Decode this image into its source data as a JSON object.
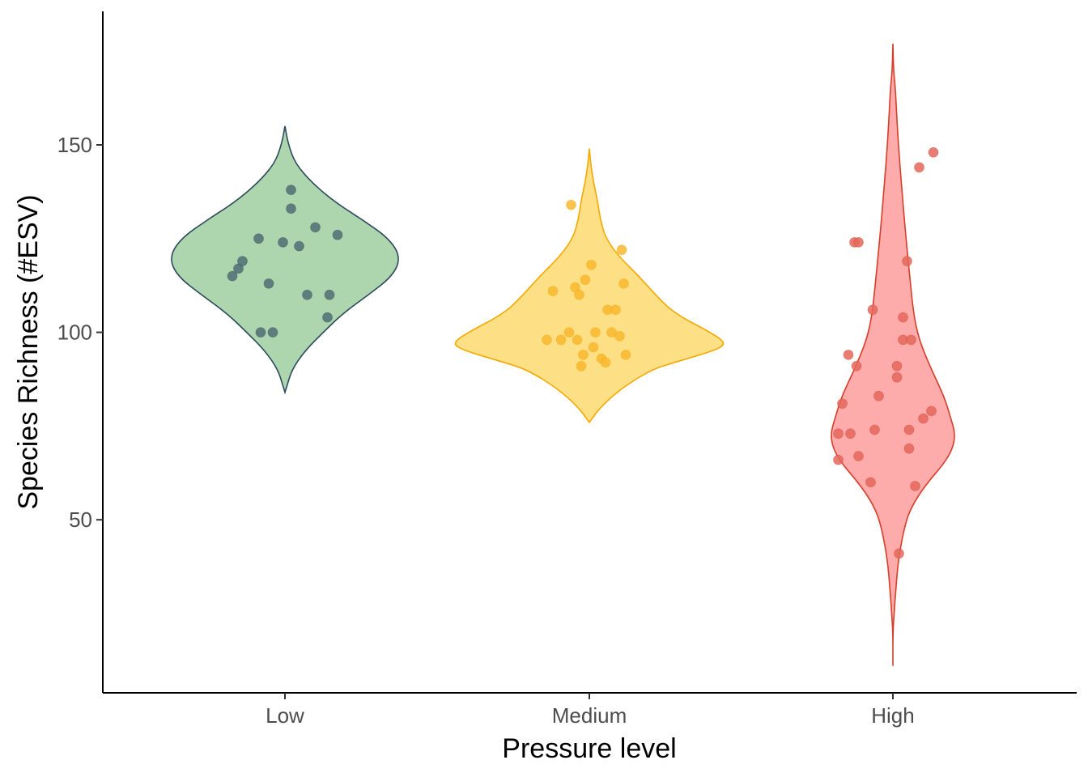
{
  "chart_data": {
    "type": "violin",
    "title": "",
    "xlabel": "Pressure level",
    "ylabel": "Species Richness (#ESV)",
    "categories": [
      "Low",
      "Medium",
      "High"
    ],
    "y_ticks": [
      50,
      100,
      150
    ],
    "ylim": [
      9,
      185
    ],
    "grid": false,
    "legend": "none",
    "series": [
      {
        "category": "Low",
        "fill": "#aed6ae",
        "line": "#2c4a5c",
        "point": "#4f6e73",
        "violin": {
          "range": [
            84,
            155
          ],
          "profile": [
            [
              155,
              0.0
            ],
            [
              150,
              0.03
            ],
            [
              145,
              0.09
            ],
            [
              140,
              0.23
            ],
            [
              135,
              0.42
            ],
            [
              130,
              0.67
            ],
            [
              125,
              0.9
            ],
            [
              120,
              1.0
            ],
            [
              115,
              0.93
            ],
            [
              110,
              0.72
            ],
            [
              105,
              0.5
            ],
            [
              100,
              0.33
            ],
            [
              95,
              0.17
            ],
            [
              90,
              0.06
            ],
            [
              86,
              0.02
            ],
            [
              84,
              0.0
            ]
          ]
        },
        "points": [
          [
            -0.26,
            115
          ],
          [
            -0.23,
            117
          ],
          [
            -0.21,
            119
          ],
          [
            -0.13,
            125
          ],
          [
            -0.12,
            100
          ],
          [
            -0.08,
            113
          ],
          [
            -0.06,
            100
          ],
          [
            -0.01,
            124
          ],
          [
            0.03,
            133
          ],
          [
            0.03,
            138
          ],
          [
            0.07,
            123
          ],
          [
            0.11,
            110
          ],
          [
            0.15,
            128
          ],
          [
            0.21,
            104
          ],
          [
            0.22,
            110
          ],
          [
            0.26,
            126
          ]
        ]
      },
      {
        "category": "Medium",
        "fill": "#fde085",
        "line": "#f5a800",
        "point": "#f9b730",
        "violin": {
          "range": [
            76,
            149
          ],
          "profile": [
            [
              149,
              0.0
            ],
            [
              145,
              0.01
            ],
            [
              140,
              0.03
            ],
            [
              135,
              0.06
            ],
            [
              130,
              0.08
            ],
            [
              125,
              0.12
            ],
            [
              120,
              0.22
            ],
            [
              115,
              0.36
            ],
            [
              110,
              0.48
            ],
            [
              105,
              0.62
            ],
            [
              100,
              0.88
            ],
            [
              97,
              1.0
            ],
            [
              95,
              0.9
            ],
            [
              92,
              0.62
            ],
            [
              90,
              0.45
            ],
            [
              85,
              0.23
            ],
            [
              80,
              0.08
            ],
            [
              76,
              0.0
            ]
          ]
        },
        "points": [
          [
            -0.21,
            98
          ],
          [
            -0.18,
            111
          ],
          [
            -0.14,
            98
          ],
          [
            -0.1,
            100
          ],
          [
            -0.09,
            134
          ],
          [
            -0.07,
            112
          ],
          [
            -0.06,
            98
          ],
          [
            -0.05,
            110
          ],
          [
            -0.04,
            91
          ],
          [
            -0.03,
            94
          ],
          [
            -0.02,
            114
          ],
          [
            0.01,
            118
          ],
          [
            0.02,
            96
          ],
          [
            0.03,
            100
          ],
          [
            0.06,
            93
          ],
          [
            0.08,
            92
          ],
          [
            0.09,
            106
          ],
          [
            0.11,
            100
          ],
          [
            0.13,
            106
          ],
          [
            0.15,
            99
          ],
          [
            0.16,
            122
          ],
          [
            0.17,
            113
          ],
          [
            0.18,
            94
          ]
        ]
      },
      {
        "category": "High",
        "fill": "#fdabab",
        "line": "#d53e2a",
        "point": "#e4675a",
        "violin": {
          "range": [
            11,
            177
          ],
          "profile": [
            [
              177,
              0.0
            ],
            [
              170,
              0.01
            ],
            [
              165,
              0.04
            ],
            [
              155,
              0.07
            ],
            [
              145,
              0.11
            ],
            [
              135,
              0.16
            ],
            [
              125,
              0.21
            ],
            [
              115,
              0.27
            ],
            [
              105,
              0.33
            ],
            [
              98,
              0.42
            ],
            [
              90,
              0.62
            ],
            [
              83,
              0.82
            ],
            [
              77,
              0.93
            ],
            [
              73,
              1.0
            ],
            [
              69,
              0.96
            ],
            [
              65,
              0.82
            ],
            [
              60,
              0.56
            ],
            [
              55,
              0.35
            ],
            [
              50,
              0.21
            ],
            [
              40,
              0.09
            ],
            [
              30,
              0.04
            ],
            [
              25,
              0.02
            ],
            [
              20,
              0.0
            ],
            [
              11,
              0.0
            ]
          ]
        },
        "points": [
          [
            -0.27,
            66
          ],
          [
            -0.27,
            73
          ],
          [
            -0.25,
            81
          ],
          [
            -0.22,
            94
          ],
          [
            -0.21,
            73
          ],
          [
            -0.19,
            124
          ],
          [
            -0.18,
            91
          ],
          [
            -0.17,
            124
          ],
          [
            -0.17,
            67
          ],
          [
            -0.11,
            60
          ],
          [
            -0.1,
            106
          ],
          [
            -0.09,
            74
          ],
          [
            -0.07,
            83
          ],
          [
            0.02,
            88
          ],
          [
            0.02,
            91
          ],
          [
            0.03,
            41
          ],
          [
            0.05,
            98
          ],
          [
            0.05,
            104
          ],
          [
            0.07,
            119
          ],
          [
            0.08,
            74
          ],
          [
            0.08,
            69
          ],
          [
            0.09,
            98
          ],
          [
            0.11,
            59
          ],
          [
            0.13,
            144
          ],
          [
            0.15,
            77
          ],
          [
            0.19,
            79
          ],
          [
            0.2,
            148
          ]
        ]
      }
    ]
  }
}
